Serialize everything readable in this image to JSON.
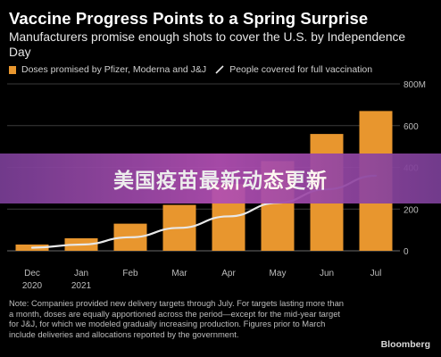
{
  "title": "Vaccine Progress Points to a Spring Surprise",
  "subtitle": "Manufacturers promise enough shots to cover the U.S. by Independence Day",
  "legend": {
    "doses_label": "Doses promised by Pfizer, Moderna and J&J",
    "people_label": "People covered for full vaccination"
  },
  "banner": {
    "text": "美国疫苗最新动态更新"
  },
  "note": "Note: Companies provided new delivery targets through July. For targets lasting more than a month, doses are equally apportioned across the period—except for the mid-year target for J&J, for which we modeled gradually increasing production. Figures prior to March include deliveries and allocations reported by the government.",
  "brand": "Bloomberg",
  "colors": {
    "bar": "#e8962e",
    "line": "#e8e8e8",
    "grid": "#3a3a3a",
    "axis_text": "#bdbdbd",
    "banner": "#a24ba8"
  },
  "chart_data": {
    "type": "bar",
    "categories": [
      "Dec",
      "Jan",
      "Feb",
      "Mar",
      "Apr",
      "May",
      "Jun",
      "Jul"
    ],
    "category_sublabels": [
      "2020",
      "2021",
      "",
      "",
      "",
      "",
      "",
      ""
    ],
    "series": [
      {
        "name": "Doses promised by Pfizer, Moderna and J&J",
        "type": "bar",
        "values": [
          30,
          60,
          130,
          220,
          320,
          430,
          560,
          670
        ]
      },
      {
        "name": "People covered for full vaccination",
        "type": "line",
        "values": [
          15,
          30,
          65,
          110,
          165,
          230,
          295,
          360
        ]
      }
    ],
    "yticks": [
      0,
      200,
      400,
      600,
      800
    ],
    "ytick_labels": [
      "0",
      "200",
      "400",
      "600",
      "800M"
    ],
    "ylim": [
      0,
      800
    ],
    "y_axis_side": "right",
    "grid": true,
    "legend_position": "top-left"
  }
}
